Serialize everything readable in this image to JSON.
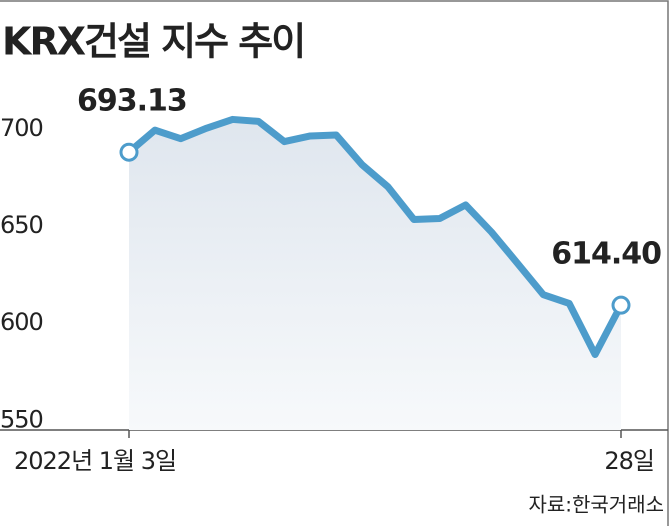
{
  "chart_data": {
    "type": "line",
    "title": "KRX건설 지수 추이",
    "source": "자료:한국거래소",
    "categories": [
      "2022년 1월 3일",
      null,
      null,
      null,
      null,
      null,
      null,
      null,
      null,
      null,
      null,
      null,
      null,
      null,
      null,
      null,
      null,
      null,
      null,
      "28일"
    ],
    "series": [
      {
        "name": "KRX건설",
        "color": "#4d9ccb",
        "values": [
          693.13,
          704.5,
          700.1,
          705.5,
          710,
          709,
          698.6,
          701.5,
          702,
          686.7,
          675.3,
          658.5,
          659,
          666,
          652,
          636,
          619.8,
          615.3,
          589,
          614.4
        ],
        "value_labels": [
          "693.13",
          null,
          null,
          null,
          null,
          null,
          null,
          null,
          null,
          null,
          null,
          null,
          null,
          null,
          null,
          null,
          null,
          null,
          null,
          "614.40"
        ]
      }
    ],
    "ylim": [
      545,
      720
    ],
    "yticks": [
      550,
      600,
      650,
      700
    ]
  }
}
